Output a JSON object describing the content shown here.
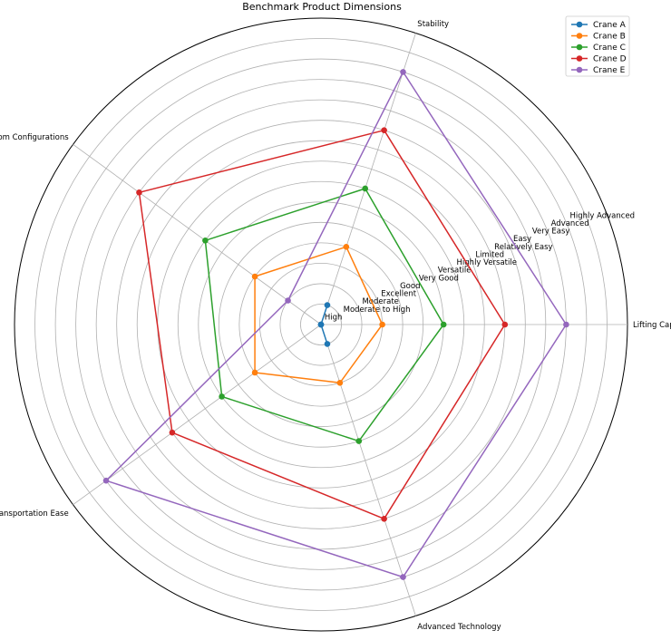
{
  "chart_data": {
    "type": "radar",
    "title": "Benchmark Product Dimensions",
    "axes": [
      "Lifting Capacity",
      "Stability",
      "Boom Configurations",
      "Transportation Ease",
      "Advanced Technology"
    ],
    "ring_labels": [
      "High",
      "Moderate to High",
      "Moderate",
      "Excellent",
      "Good",
      "Very Good",
      "Versatile",
      "Highly Versatile",
      "Limited",
      "Relatively Easy",
      "Easy",
      "Very Easy",
      "Advanced",
      "Highly Advanced"
    ],
    "r_range": [
      0,
      15
    ],
    "grid": true,
    "legend_position": "top-right",
    "series": [
      {
        "name": "Crane A",
        "color": "#1f77b4",
        "values": [
          0,
          1,
          0,
          0,
          1
        ]
      },
      {
        "name": "Crane B",
        "color": "#ff7f0e",
        "values": [
          3,
          4,
          4,
          4,
          3
        ]
      },
      {
        "name": "Crane C",
        "color": "#2ca02c",
        "values": [
          6,
          7,
          7,
          6,
          6
        ]
      },
      {
        "name": "Crane D",
        "color": "#d62728",
        "values": [
          9,
          10,
          11,
          9,
          10
        ]
      },
      {
        "name": "Crane E",
        "color": "#9467bd",
        "values": [
          12,
          13,
          2,
          13,
          13
        ]
      }
    ]
  }
}
